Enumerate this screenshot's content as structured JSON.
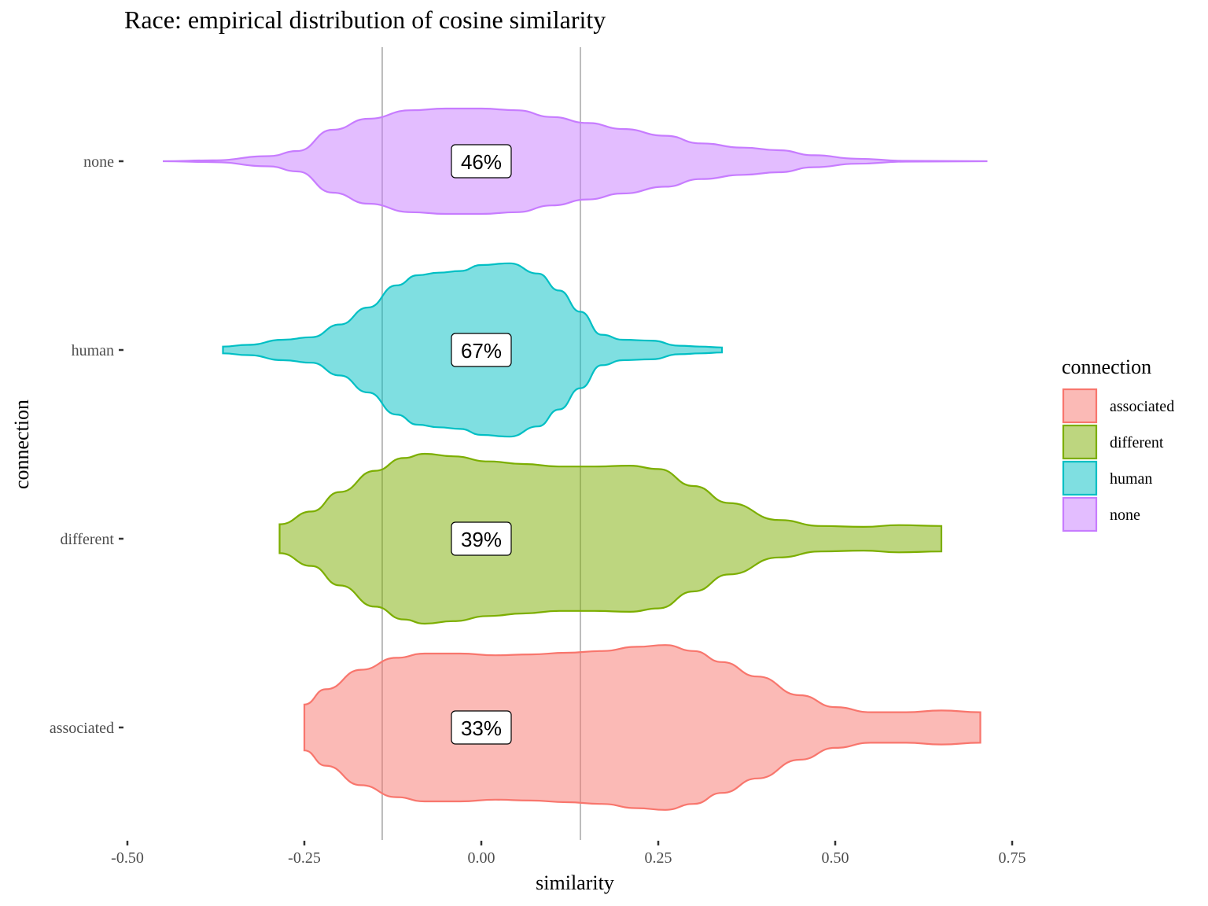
{
  "chart_data": {
    "type": "violin",
    "title": "Race: empirical distribution of cosine similarity",
    "xlabel": "similarity",
    "ylabel": "connection",
    "xlim": [
      -0.5,
      0.75
    ],
    "x_ticks": [
      "-0.50",
      "-0.25",
      "0.00",
      "0.25",
      "0.50",
      "0.75"
    ],
    "x_tick_values": [
      -0.5,
      -0.25,
      0,
      0.25,
      0.5,
      0.75
    ],
    "categories": [
      "associated",
      "different",
      "human",
      "none"
    ],
    "reference_lines": [
      -0.14,
      0.14
    ],
    "grid": false,
    "legend": {
      "title": "connection",
      "position": "right",
      "entries": [
        "associated",
        "different",
        "human",
        "none"
      ]
    },
    "series": [
      {
        "name": "associated",
        "label": "33%",
        "fill": "#F8766D",
        "range": [
          -0.25,
          0.705
        ],
        "density": [
          [
            -0.25,
            0.27
          ],
          [
            -0.22,
            0.45
          ],
          [
            -0.17,
            0.68
          ],
          [
            -0.12,
            0.82
          ],
          [
            -0.08,
            0.87
          ],
          [
            -0.03,
            0.87
          ],
          [
            0.02,
            0.85
          ],
          [
            0.07,
            0.86
          ],
          [
            0.12,
            0.88
          ],
          [
            0.17,
            0.9
          ],
          [
            0.22,
            0.95
          ],
          [
            0.26,
            0.97
          ],
          [
            0.3,
            0.9
          ],
          [
            0.34,
            0.77
          ],
          [
            0.39,
            0.6
          ],
          [
            0.45,
            0.38
          ],
          [
            0.5,
            0.24
          ],
          [
            0.55,
            0.18
          ],
          [
            0.6,
            0.18
          ],
          [
            0.65,
            0.2
          ],
          [
            0.705,
            0.18
          ]
        ]
      },
      {
        "name": "different",
        "label": "39%",
        "fill": "#7CAE00",
        "range": [
          -0.285,
          0.65
        ],
        "density": [
          [
            -0.285,
            0.17
          ],
          [
            -0.24,
            0.32
          ],
          [
            -0.2,
            0.55
          ],
          [
            -0.15,
            0.8
          ],
          [
            -0.11,
            0.95
          ],
          [
            -0.08,
            1.0
          ],
          [
            -0.04,
            0.97
          ],
          [
            0.01,
            0.91
          ],
          [
            0.06,
            0.88
          ],
          [
            0.11,
            0.85
          ],
          [
            0.16,
            0.85
          ],
          [
            0.21,
            0.86
          ],
          [
            0.25,
            0.82
          ],
          [
            0.3,
            0.62
          ],
          [
            0.35,
            0.42
          ],
          [
            0.42,
            0.22
          ],
          [
            0.48,
            0.15
          ],
          [
            0.54,
            0.14
          ],
          [
            0.59,
            0.16
          ],
          [
            0.65,
            0.15
          ]
        ]
      },
      {
        "name": "human",
        "label": "67%",
        "fill": "#00BFC4",
        "range": [
          -0.365,
          0.34
        ],
        "density": [
          [
            -0.365,
            0.04
          ],
          [
            -0.33,
            0.06
          ],
          [
            -0.28,
            0.12
          ],
          [
            -0.24,
            0.15
          ],
          [
            -0.2,
            0.3
          ],
          [
            -0.16,
            0.5
          ],
          [
            -0.12,
            0.76
          ],
          [
            -0.09,
            0.88
          ],
          [
            -0.06,
            0.91
          ],
          [
            -0.03,
            0.93
          ],
          [
            0.0,
            1.0
          ],
          [
            0.04,
            1.02
          ],
          [
            0.08,
            0.9
          ],
          [
            0.11,
            0.7
          ],
          [
            0.14,
            0.45
          ],
          [
            0.17,
            0.18
          ],
          [
            0.2,
            0.12
          ],
          [
            0.24,
            0.11
          ],
          [
            0.28,
            0.05
          ],
          [
            0.31,
            0.04
          ],
          [
            0.34,
            0.03
          ]
        ]
      },
      {
        "name": "none",
        "label": "46%",
        "fill": "#C77CFF",
        "range": [
          -0.45,
          0.715
        ],
        "density": [
          [
            -0.45,
            0.0
          ],
          [
            -0.38,
            0.01
          ],
          [
            -0.3,
            0.06
          ],
          [
            -0.26,
            0.12
          ],
          [
            -0.21,
            0.37
          ],
          [
            -0.16,
            0.5
          ],
          [
            -0.1,
            0.6
          ],
          [
            -0.05,
            0.62
          ],
          [
            0.0,
            0.62
          ],
          [
            0.05,
            0.6
          ],
          [
            0.1,
            0.52
          ],
          [
            0.15,
            0.45
          ],
          [
            0.2,
            0.38
          ],
          [
            0.26,
            0.3
          ],
          [
            0.31,
            0.21
          ],
          [
            0.37,
            0.16
          ],
          [
            0.42,
            0.13
          ],
          [
            0.47,
            0.07
          ],
          [
            0.53,
            0.03
          ],
          [
            0.6,
            0.005
          ],
          [
            0.715,
            0.0
          ]
        ]
      }
    ]
  }
}
